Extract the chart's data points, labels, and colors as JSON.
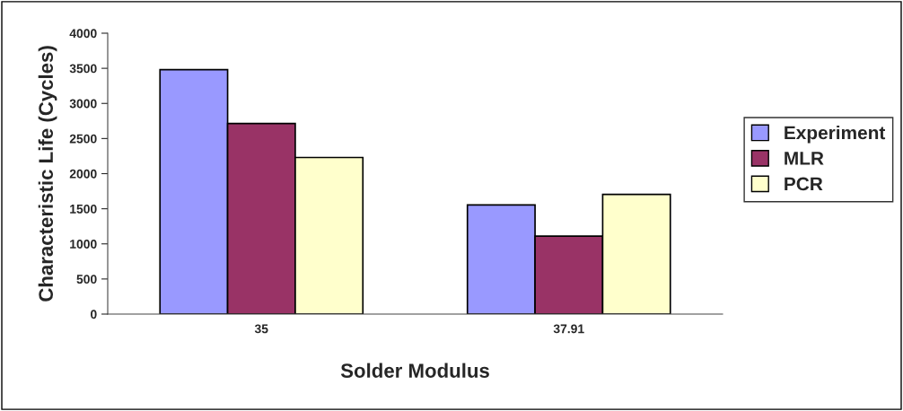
{
  "chart_data": {
    "type": "bar",
    "xlabel": "Solder Modulus",
    "ylabel": "Characteristic Life (Cycles)",
    "categories": [
      "35",
      "37.91"
    ],
    "series": [
      {
        "name": "Experiment",
        "color": "#9999ff",
        "values": [
          3480,
          1555
        ]
      },
      {
        "name": "MLR",
        "color": "#993366",
        "values": [
          2715,
          1110
        ]
      },
      {
        "name": "PCR",
        "color": "#ffffcc",
        "values": [
          2230,
          1705
        ]
      }
    ],
    "ylim": [
      0,
      4000
    ],
    "yticks": [
      0,
      500,
      1000,
      1500,
      2000,
      2500,
      3000,
      3500,
      4000
    ],
    "grid": false,
    "legend": "right"
  }
}
